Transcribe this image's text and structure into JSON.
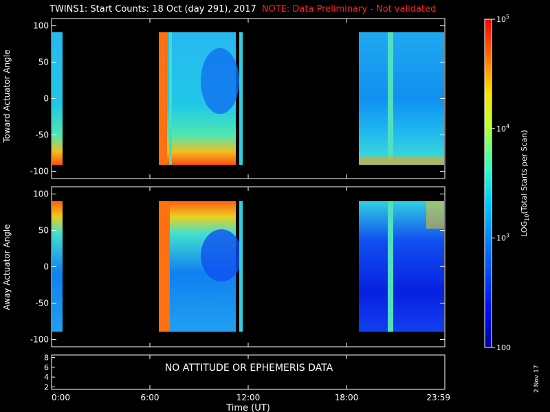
{
  "header": {
    "title": "TWINS1: Start Counts: 18 Oct (day 291), 2017",
    "note": "NOTE: Data Preliminary - Not validated"
  },
  "footer": {
    "date_stamp": "2 Nov 17"
  },
  "colors": {
    "background": "#000000",
    "foreground": "#ffffff",
    "note": "#ff2020"
  },
  "chart_data": [
    {
      "type": "heatmap",
      "ylabel": "Toward Actuator Angle",
      "xlabel": "",
      "xlim": [
        0,
        24
      ],
      "ylim": [
        -110,
        110
      ],
      "yticks": [
        100,
        50,
        0,
        -50,
        -100
      ],
      "data_yrange": [
        -90,
        90
      ],
      "observed_intervals_hours": [
        [
          0,
          0.5
        ],
        [
          6.3,
          10.9
        ],
        [
          11.1,
          11.25
        ],
        [
          18.7,
          24
        ]
      ]
    },
    {
      "type": "heatmap",
      "ylabel": "Away Actuator Angle",
      "xlabel": "",
      "xlim": [
        0,
        24
      ],
      "ylim": [
        -110,
        110
      ],
      "yticks": [
        100,
        50,
        0,
        -50,
        -100
      ],
      "data_yrange": [
        -90,
        90
      ],
      "observed_intervals_hours": [
        [
          0,
          0.5
        ],
        [
          6.3,
          10.9
        ],
        [
          11.1,
          11.25
        ],
        [
          18.7,
          24
        ]
      ]
    },
    {
      "type": "table",
      "ylim": [
        1.5,
        8.5
      ],
      "yticks": [
        "8",
        "6",
        "4",
        "2"
      ],
      "message": "NO ATTITUDE OR EPHEMERIS DATA",
      "xlabel": "Time (UT)",
      "xticks": [
        "0:00",
        "6:00",
        "12:00",
        "18:00",
        "23:59"
      ],
      "xtick_hours": [
        0,
        6,
        12,
        18,
        24
      ]
    }
  ],
  "colorbar": {
    "label": "LOG10(Total Starts per Scan)",
    "label_parts": {
      "pre": "LOG",
      "sub": "10",
      "post": "(Total Starts per Scan)"
    },
    "scale": "log",
    "range": [
      100,
      100000
    ],
    "ticks": [
      {
        "value": 100,
        "label": "100"
      },
      {
        "value": 1000,
        "base": "10",
        "exp": "3"
      },
      {
        "value": 10000,
        "base": "10",
        "exp": "4"
      },
      {
        "value": 100000,
        "base": "10",
        "exp": "5"
      }
    ]
  }
}
